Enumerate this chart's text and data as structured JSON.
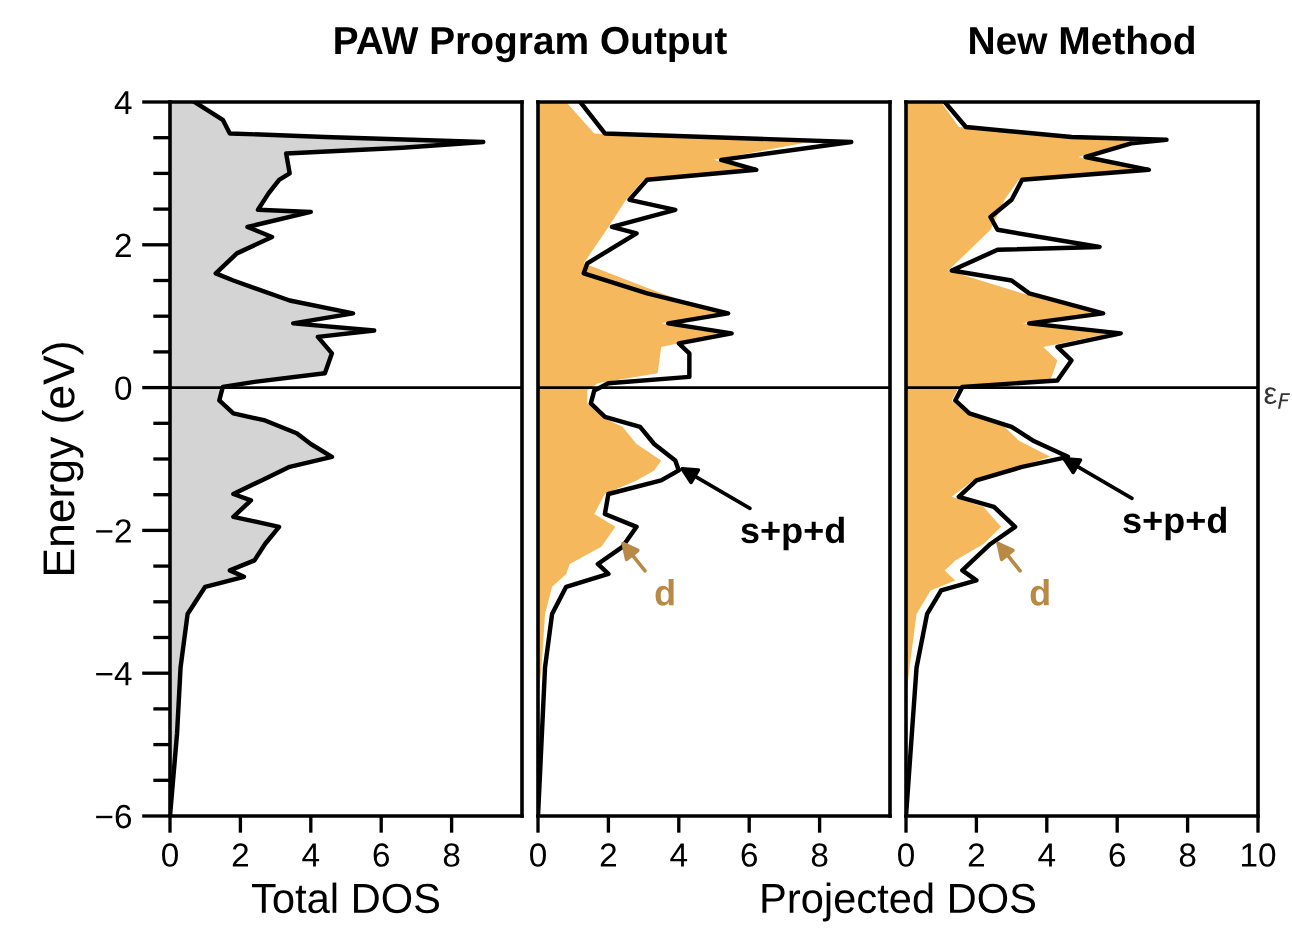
{
  "chart_data": [
    {
      "type": "area",
      "orientation": "horizontal",
      "title": "PAW Program Output",
      "xlabel": "Total DOS",
      "ylabel": "Energy (eV)",
      "xlim": [
        0,
        10
      ],
      "xticks": [
        0,
        2,
        4,
        6,
        8
      ],
      "ylim": [
        -6,
        4
      ],
      "yticks": [
        -6,
        -4,
        -2,
        0,
        2,
        4
      ],
      "ref_lines": [
        {
          "axis": "y",
          "value": 0,
          "color": "#000000"
        }
      ],
      "series": [
        {
          "color": "#d4d4d4",
          "line_style": "solid",
          "x": [
            4.0,
            3.75,
            3.56,
            3.51,
            3.44,
            3.36,
            3.28,
            3.0,
            2.91,
            2.72,
            2.49,
            2.46,
            2.25,
            2.11,
            1.88,
            1.6,
            1.5,
            1.22,
            1.04,
            0.9,
            0.8,
            0.71,
            0.48,
            0.2,
            0.08,
            0.01,
            -0.18,
            -0.36,
            -0.46,
            -0.64,
            -0.79,
            -0.97,
            -1.11,
            -1.3,
            -1.49,
            -1.58,
            -1.81,
            -1.95,
            -2.19,
            -2.42,
            -2.56,
            -2.65,
            -2.79,
            -3.17,
            -3.92,
            -4.85,
            -6.0
          ],
          "values": [
            0.7,
            1.5,
            1.7,
            4.4,
            8.9,
            6.6,
            3.3,
            3.4,
            3.1,
            2.8,
            2.5,
            4.0,
            2.2,
            2.9,
            1.9,
            1.3,
            1.8,
            3.4,
            5.2,
            3.5,
            5.8,
            4.2,
            4.6,
            4.4,
            2.4,
            1.5,
            1.4,
            1.8,
            2.7,
            3.6,
            4.0,
            4.6,
            3.4,
            2.6,
            1.8,
            2.3,
            1.8,
            3.1,
            2.7,
            2.4,
            1.7,
            2.1,
            1.0,
            0.5,
            0.3,
            0.2,
            0
          ]
        }
      ]
    },
    {
      "type": "area",
      "orientation": "horizontal",
      "xlabel": "Projected DOS",
      "tick_labels": "x",
      "xlim": [
        0,
        10
      ],
      "xticks": [
        0,
        2,
        4,
        6,
        8
      ],
      "ylim": [
        -6,
        4
      ],
      "yticks": [
        -6,
        -4,
        -2,
        0,
        2,
        4
      ],
      "ref_lines": [
        {
          "axis": "y",
          "value": 0,
          "color": "#000000"
        }
      ],
      "annotations": [
        {
          "text": "d",
          "x": 2.35,
          "y": -2.14
        },
        {
          "text": "s+p+d",
          "x": 4.0,
          "y": -1.11
        }
      ],
      "series": [
        {
          "color": "#f6b85c",
          "x": [
            4.0,
            3.56,
            3.44,
            3.19,
            3.05,
            2.91,
            2.63,
            2.25,
            1.74,
            1.32,
            1.04,
            0.9,
            0.76,
            0.57,
            0.2,
            0.06,
            -0.04,
            -0.22,
            -0.41,
            -0.55,
            -0.79,
            -1.02,
            -1.16,
            -1.3,
            -1.49,
            -1.77,
            -1.95,
            -2.23,
            -2.47,
            -2.61,
            -2.79,
            -3.17,
            -3.92,
            -4.38,
            -6.0
          ],
          "values": [
            0.8,
            1.6,
            7.7,
            5.0,
            6.0,
            3.0,
            2.5,
            2.0,
            1.3,
            3.5,
            5.2,
            3.5,
            5.3,
            3.5,
            3.4,
            1.7,
            1.4,
            1.4,
            1.8,
            2.4,
            2.8,
            3.5,
            3.3,
            2.8,
            1.9,
            1.6,
            2.2,
            1.8,
            0.9,
            0.8,
            0.4,
            0.2,
            0.1,
            0,
            0
          ]
        },
        {
          "type": "line",
          "color": "#000000",
          "x": [
            4.0,
            3.56,
            3.44,
            3.19,
            3.05,
            2.91,
            2.63,
            2.49,
            2.25,
            2.16,
            1.74,
            1.6,
            1.32,
            1.04,
            0.9,
            0.76,
            0.62,
            0.48,
            0.15,
            0.06,
            -0.04,
            -0.22,
            -0.41,
            -0.55,
            -0.79,
            -1.02,
            -1.16,
            -1.3,
            -1.49,
            -1.77,
            -1.95,
            -2.23,
            -2.47,
            -2.61,
            -2.79,
            -3.17,
            -3.92,
            -6.0
          ],
          "values": [
            1.2,
            1.9,
            8.9,
            5.2,
            6.2,
            3.1,
            2.6,
            3.9,
            2.1,
            2.8,
            1.4,
            1.3,
            3.1,
            5.4,
            3.7,
            5.5,
            4.0,
            4.3,
            4.3,
            2.0,
            1.6,
            1.5,
            1.9,
            2.9,
            3.3,
            3.9,
            4.0,
            3.5,
            2.0,
            1.9,
            2.8,
            2.4,
            1.7,
            2.0,
            0.8,
            0.4,
            0.2,
            0
          ]
        }
      ]
    },
    {
      "type": "area",
      "orientation": "horizontal",
      "title": "New Method",
      "tick_labels": "x",
      "xlim": [
        0,
        10
      ],
      "xticks": [
        0,
        2,
        4,
        6,
        8,
        10
      ],
      "ylim": [
        -6,
        4
      ],
      "yticks": [
        -6,
        -4,
        -2,
        0,
        2,
        4
      ],
      "ref_lines": [
        {
          "axis": "y",
          "value": 0,
          "label": "ε$_{F}$",
          "color": "#000000"
        }
      ],
      "annotations": [
        {
          "text": "d",
          "x": 2.55,
          "y": -2.14
        },
        {
          "text": "s+p+d",
          "x": 4.4,
          "y": -0.97
        }
      ],
      "series": [
        {
          "color": "#f6b85c",
          "x": [
            4.0,
            3.65,
            3.47,
            3.23,
            3.05,
            2.91,
            2.63,
            2.21,
            1.64,
            1.32,
            1.04,
            0.9,
            0.76,
            0.57,
            0.38,
            0.1,
            0.01,
            -0.18,
            -0.36,
            -0.55,
            -0.74,
            -0.97,
            -1.11,
            -1.3,
            -1.53,
            -1.67,
            -1.95,
            -2.19,
            -2.42,
            -2.56,
            -2.7,
            -2.84,
            -3.17,
            -3.92,
            -4.38,
            -6.0
          ],
          "values": [
            1.0,
            1.5,
            6.6,
            4.9,
            6.6,
            3.2,
            2.8,
            2.4,
            1.2,
            3.3,
            5.4,
            3.3,
            5.8,
            3.9,
            4.3,
            4.1,
            1.5,
            1.3,
            1.7,
            2.8,
            3.2,
            4.1,
            3.2,
            1.9,
            1.3,
            2.2,
            2.7,
            2.2,
            1.4,
            1.1,
            1.4,
            0.7,
            0.3,
            0.1,
            0,
            0
          ]
        },
        {
          "type": "line",
          "color": "#000000",
          "x": [
            4.0,
            3.65,
            3.51,
            3.47,
            3.42,
            3.23,
            3.05,
            2.91,
            2.63,
            2.39,
            2.21,
            1.97,
            1.93,
            1.64,
            1.5,
            1.32,
            1.04,
            0.9,
            0.76,
            0.57,
            0.38,
            0.1,
            0.01,
            -0.18,
            -0.36,
            -0.55,
            -0.74,
            -0.97,
            -1.11,
            -1.3,
            -1.53,
            -1.67,
            -1.95,
            -2.19,
            -2.42,
            -2.56,
            -2.7,
            -2.84,
            -3.17,
            -3.92,
            -6.0
          ],
          "values": [
            1.1,
            1.7,
            4.7,
            7.4,
            6.4,
            5.1,
            6.9,
            3.3,
            3.0,
            2.4,
            2.6,
            5.5,
            2.6,
            1.3,
            3.0,
            3.5,
            5.6,
            3.5,
            6.1,
            4.3,
            4.7,
            4.3,
            1.6,
            1.4,
            1.8,
            3.0,
            3.6,
            4.6,
            3.3,
            2.0,
            1.5,
            2.5,
            3.1,
            2.4,
            1.9,
            1.6,
            2.0,
            1.0,
            0.6,
            0.3,
            0
          ]
        }
      ]
    }
  ]
}
